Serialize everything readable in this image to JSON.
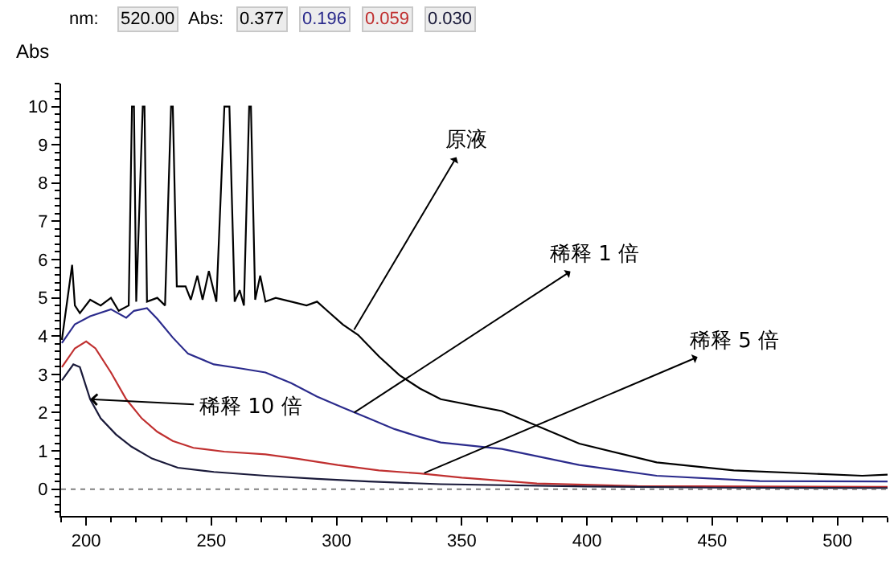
{
  "chart_data": {
    "type": "line",
    "ylabel": "Abs",
    "xlim": [
      190,
      520
    ],
    "xticks": [
      200,
      250,
      300,
      350,
      400,
      450,
      500
    ],
    "ylim": [
      -0.7,
      10.6
    ],
    "yticks": [
      0,
      1,
      2,
      3,
      4,
      5,
      6,
      7,
      8,
      9,
      10
    ],
    "marker": "none",
    "line_style": "solid",
    "ref_lines": [
      {
        "axis": "y",
        "value": 0,
        "color": "#808080",
        "line_style": "dotted"
      }
    ],
    "annotations": [
      "nm:",
      "520.00",
      "Abs:",
      "0.377",
      "0.196",
      "0.059",
      "0.030",
      {
        "text": "原液",
        "x": 307,
        "y": 4.17
      },
      {
        "text": "稀释 1 倍",
        "x": 307,
        "y": 2.0
      },
      {
        "text": "稀释 5 倍",
        "x": 335,
        "y": 0.42
      },
      {
        "text": "稀释 10 倍",
        "x": 201.6,
        "y": 2.35
      }
    ],
    "series": [
      {
        "color": "#000000",
        "x": [
          190.3,
          194.4,
          195.5,
          197.5,
          201.6,
          205.8,
          209.9,
          213,
          217,
          218.3,
          219.1,
          220,
          222.6,
          223.3,
          224.3,
          228.4,
          231.5,
          233.9,
          234.6,
          236.2,
          239.7,
          241.8,
          244.4,
          246.5,
          249,
          252,
          255.2,
          256.2,
          257.2,
          259.3,
          261.3,
          263,
          265.1,
          265.8,
          267.5,
          269.5,
          271.6,
          275.7,
          281.9,
          288,
          292.2,
          296.3,
          302.5,
          308.6,
          316.9,
          325.1,
          333.3,
          341.6,
          366,
          396.9,
          427.8,
          458.6,
          509.9,
          520
        ],
        "values": [
          3.9,
          5.86,
          4.8,
          4.6,
          4.95,
          4.8,
          5.0,
          4.66,
          4.8,
          10,
          10,
          4.9,
          10,
          10,
          4.9,
          5.0,
          4.8,
          10,
          10,
          5.3,
          5.3,
          4.95,
          5.58,
          4.95,
          5.7,
          4.9,
          10,
          10,
          10,
          4.9,
          5.2,
          4.8,
          10,
          10,
          4.95,
          5.58,
          4.9,
          5.0,
          4.9,
          4.8,
          4.9,
          4.66,
          4.3,
          4.03,
          3.47,
          2.98,
          2.63,
          2.35,
          2.04,
          1.19,
          0.7,
          0.49,
          0.35,
          0.38
        ]
      },
      {
        "color": "#2b2b8c",
        "x": [
          190.3,
          195.5,
          201.6,
          209.9,
          216,
          219.1,
          224.3,
          228.4,
          234.6,
          240.7,
          251,
          261.3,
          271.6,
          281.9,
          292.2,
          302.5,
          312.8,
          323.1,
          333.3,
          341.6,
          366,
          396.9,
          427.8,
          468.9,
          520
        ],
        "values": [
          3.82,
          4.31,
          4.52,
          4.7,
          4.48,
          4.66,
          4.73,
          4.45,
          3.96,
          3.54,
          3.26,
          3.16,
          3.05,
          2.77,
          2.42,
          2.13,
          1.85,
          1.57,
          1.36,
          1.22,
          1.05,
          0.63,
          0.35,
          0.21,
          0.2
        ]
      },
      {
        "color": "#c03030",
        "x": [
          190.3,
          195.5,
          200,
          203.7,
          209.9,
          216,
          222.2,
          228.4,
          234.6,
          242.8,
          255.1,
          271.6,
          283.9,
          300.4,
          316.9,
          333.3,
          350,
          380,
          420,
          520
        ],
        "values": [
          3.19,
          3.68,
          3.86,
          3.68,
          3.05,
          2.35,
          1.85,
          1.5,
          1.26,
          1.08,
          0.98,
          0.91,
          0.8,
          0.63,
          0.49,
          0.41,
          0.3,
          0.15,
          0.08,
          0.06
        ]
      },
      {
        "color": "#1a1a3a",
        "x": [
          190.3,
          194.9,
          197.5,
          201.6,
          205.8,
          211.9,
          218.1,
          226.3,
          236.6,
          251,
          271.6,
          292.2,
          312.8,
          341.6,
          400,
          450,
          520
        ],
        "values": [
          2.84,
          3.26,
          3.19,
          2.35,
          1.85,
          1.43,
          1.11,
          0.8,
          0.56,
          0.45,
          0.35,
          0.27,
          0.2,
          0.13,
          0.07,
          0.04,
          0.03
        ]
      }
    ]
  }
}
